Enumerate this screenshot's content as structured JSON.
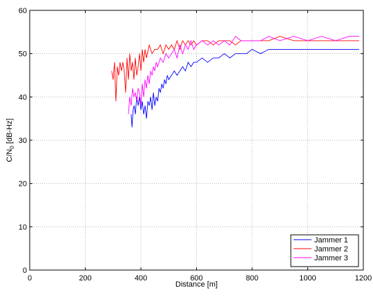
{
  "chart_data": {
    "type": "line",
    "xlabel": "Distance [m]",
    "ylabel": "C/N",
    "ylabel_sub": "0",
    "ylabel_unit": " [dB-Hz]",
    "xlim": [
      0,
      1200
    ],
    "ylim": [
      0,
      60
    ],
    "xticks": [
      0,
      200,
      400,
      600,
      800,
      1000,
      1200
    ],
    "yticks": [
      0,
      10,
      20,
      30,
      40,
      50,
      60
    ],
    "grid": true,
    "legend_position": "bottom-right",
    "colors": {
      "Jammer 1": "#0000ff",
      "Jammer 2": "#ff0000",
      "Jammer 3": "#ff00ff"
    },
    "series": [
      {
        "name": "Jammer 1",
        "color": "#0000ff",
        "x": [
          365,
          368,
          372,
          376,
          380,
          385,
          390,
          395,
          400,
          405,
          410,
          415,
          420,
          425,
          430,
          435,
          440,
          445,
          450,
          455,
          460,
          465,
          470,
          475,
          480,
          485,
          490,
          495,
          500,
          510,
          520,
          530,
          540,
          550,
          560,
          570,
          580,
          590,
          600,
          620,
          640,
          660,
          680,
          700,
          720,
          740,
          760,
          780,
          800,
          830,
          860,
          900,
          950,
          1000,
          1050,
          1100,
          1150,
          1185
        ],
        "y": [
          36,
          33,
          37,
          38,
          36,
          40,
          38,
          40,
          37,
          39,
          36,
          38,
          35,
          39,
          38,
          40,
          37,
          41,
          38,
          40,
          39,
          42,
          41,
          43,
          42,
          44,
          43,
          45,
          44,
          45,
          46,
          45,
          46,
          47,
          46,
          48,
          47,
          48,
          48,
          49,
          48,
          49,
          49,
          50,
          49,
          50,
          50,
          50,
          51,
          50,
          51,
          51,
          51,
          51,
          51,
          51,
          51,
          51
        ]
      },
      {
        "name": "Jammer 2",
        "color": "#ff0000",
        "x": [
          295,
          300,
          305,
          310,
          315,
          320,
          325,
          330,
          335,
          340,
          345,
          350,
          355,
          360,
          365,
          370,
          375,
          380,
          385,
          390,
          395,
          400,
          405,
          410,
          415,
          420,
          430,
          440,
          450,
          460,
          470,
          480,
          490,
          500,
          510,
          520,
          530,
          540,
          550,
          560,
          570,
          580,
          590,
          600,
          620,
          640,
          660,
          680,
          700,
          720,
          740,
          760,
          780,
          800,
          830,
          860,
          900,
          950,
          1000,
          1050,
          1100,
          1150,
          1185
        ],
        "y": [
          46,
          44,
          48,
          39,
          47,
          45,
          48,
          46,
          48,
          46,
          41,
          49,
          44,
          50,
          46,
          48,
          44,
          49,
          45,
          47,
          50,
          46,
          51,
          48,
          51,
          49,
          52,
          50,
          51,
          51,
          52,
          50,
          52,
          51,
          52,
          51,
          53,
          51,
          53,
          52,
          53,
          52,
          53,
          52,
          53,
          53,
          52,
          53,
          53,
          53,
          52,
          53,
          53,
          53,
          53,
          53,
          54,
          53,
          53,
          53,
          53,
          53,
          53
        ]
      },
      {
        "name": "Jammer 3",
        "color": "#ff00ff",
        "x": [
          355,
          360,
          365,
          370,
          375,
          380,
          385,
          390,
          395,
          400,
          405,
          410,
          415,
          420,
          425,
          430,
          435,
          440,
          445,
          450,
          455,
          460,
          470,
          480,
          490,
          500,
          510,
          520,
          530,
          540,
          550,
          560,
          570,
          580,
          590,
          600,
          620,
          640,
          660,
          680,
          700,
          720,
          740,
          760,
          780,
          800,
          830,
          860,
          900,
          950,
          1000,
          1050,
          1100,
          1150,
          1185
        ],
        "y": [
          36,
          40,
          38,
          42,
          40,
          41,
          39,
          42,
          41,
          38,
          43,
          40,
          44,
          42,
          45,
          43,
          46,
          45,
          47,
          46,
          48,
          47,
          49,
          48,
          50,
          49,
          50,
          51,
          49,
          52,
          50,
          52,
          51,
          53,
          51,
          52,
          53,
          52,
          53,
          52,
          53,
          52,
          54,
          53,
          53,
          53,
          53,
          54,
          53,
          54,
          53,
          54,
          53,
          54,
          54
        ]
      }
    ]
  }
}
